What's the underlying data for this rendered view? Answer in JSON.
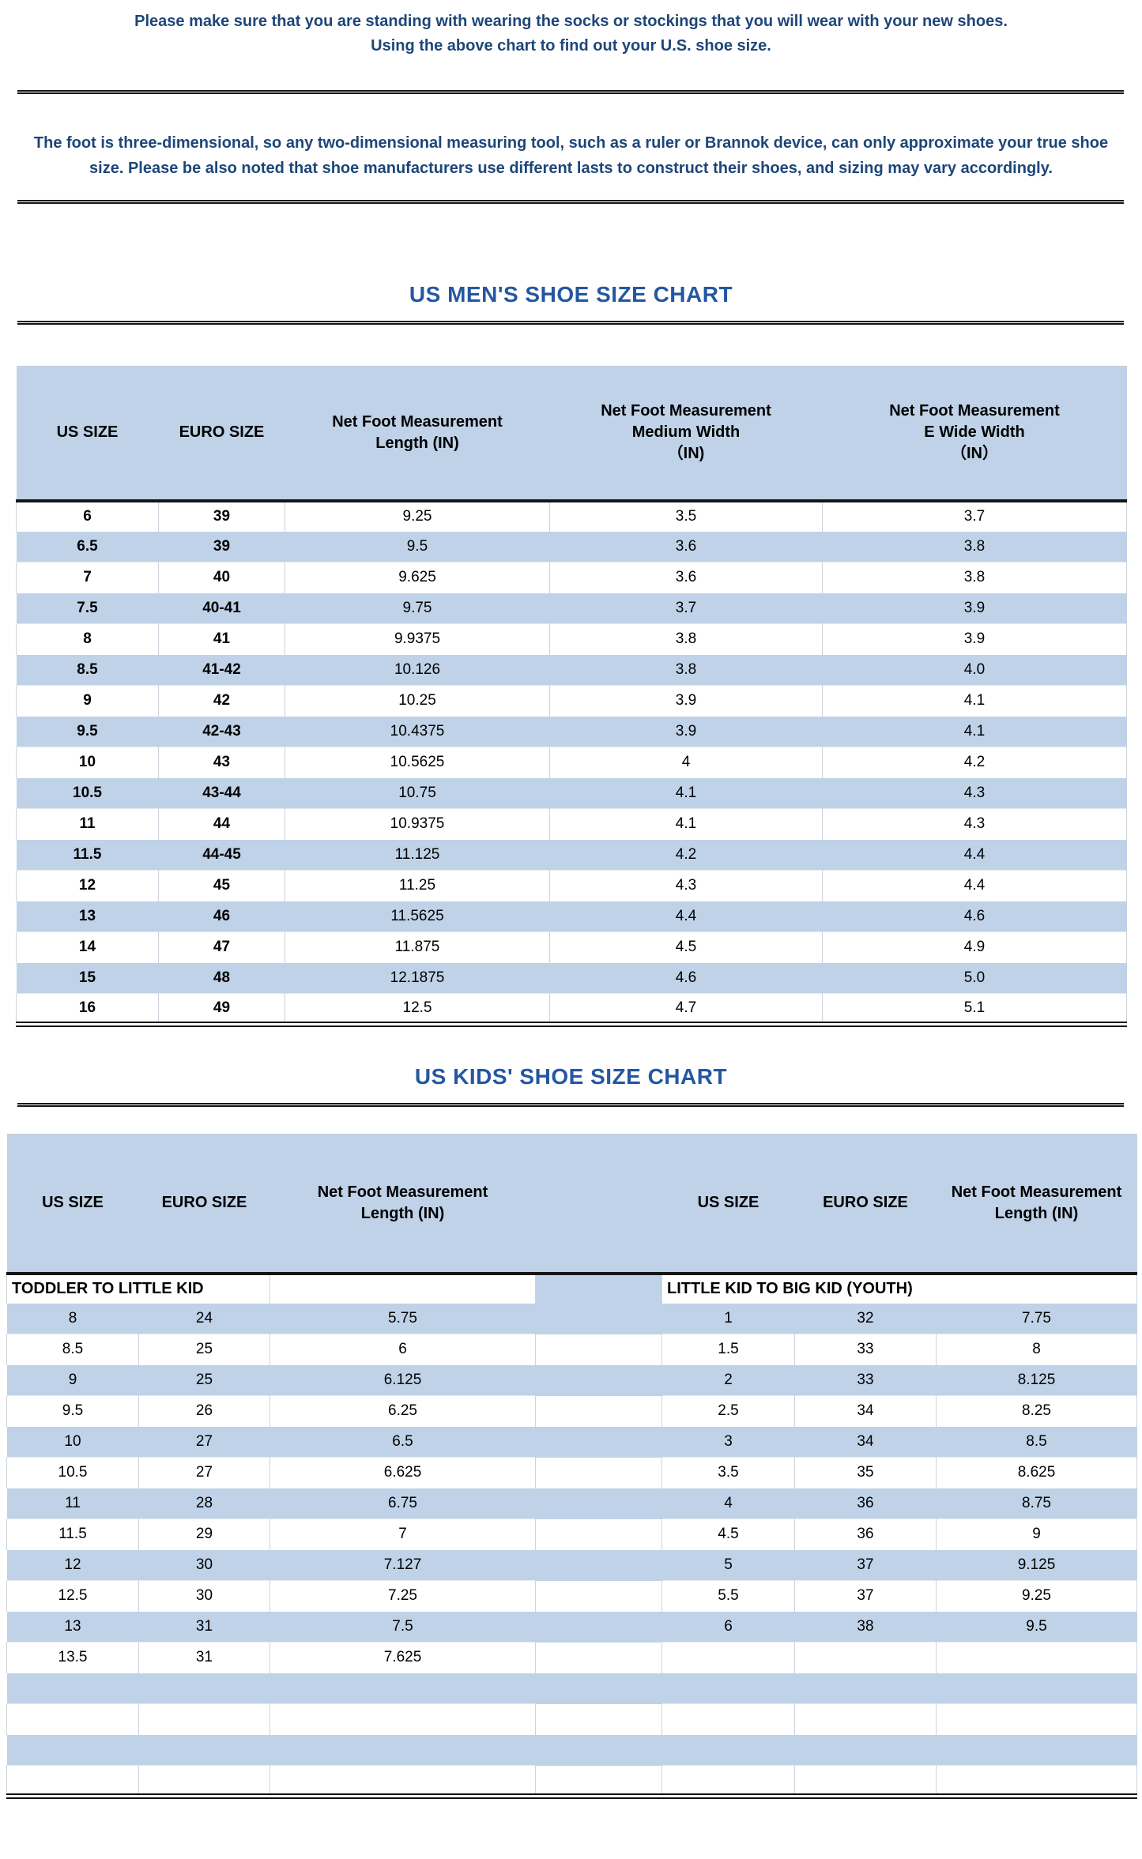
{
  "intro": {
    "line1": "Please make sure that you are standing with wearing the socks or stockings that you will wear with your new shoes.",
    "line2": "Using the above chart to find out your U.S. shoe size."
  },
  "note": "The foot is three-dimensional, so any two-dimensional measuring tool, such as a ruler or Brannok device, can only approximate your true shoe size. Please be also noted that shoe manufacturers use different lasts to construct their shoes, and sizing may vary accordingly.",
  "colors": {
    "table_blue": "#bfd2e8",
    "navy_text": "#1d4679",
    "title_blue": "#2457a2",
    "border_dark": "#141414",
    "cell_divider": "#ccd3dd"
  },
  "mens_chart": {
    "title": "US MEN'S SHOE SIZE CHART",
    "columns": [
      {
        "lines": [
          "US SIZE"
        ]
      },
      {
        "lines": [
          "EURO SIZE"
        ]
      },
      {
        "lines": [
          "Net Foot Measurement",
          "Length (IN)"
        ]
      },
      {
        "lines": [
          "Net Foot Measurement",
          "Medium Width",
          "（IN)"
        ]
      },
      {
        "lines": [
          "Net Foot Measurement",
          "E Wide Width",
          "（IN）"
        ]
      }
    ],
    "rows": [
      [
        "6",
        "39",
        "9.25",
        "3.5",
        "3.7"
      ],
      [
        "6.5",
        "39",
        "9.5",
        "3.6",
        "3.8"
      ],
      [
        "7",
        "40",
        "9.625",
        "3.6",
        "3.8"
      ],
      [
        "7.5",
        "40-41",
        "9.75",
        "3.7",
        "3.9"
      ],
      [
        "8",
        "41",
        "9.9375",
        "3.8",
        "3.9"
      ],
      [
        "8.5",
        "41-42",
        "10.126",
        "3.8",
        "4.0"
      ],
      [
        "9",
        "42",
        "10.25",
        "3.9",
        "4.1"
      ],
      [
        "9.5",
        "42-43",
        "10.4375",
        "3.9",
        "4.1"
      ],
      [
        "10",
        "43",
        "10.5625",
        "4",
        "4.2"
      ],
      [
        "10.5",
        "43-44",
        "10.75",
        "4.1",
        "4.3"
      ],
      [
        "11",
        "44",
        "10.9375",
        "4.1",
        "4.3"
      ],
      [
        "11.5",
        "44-45",
        "11.125",
        "4.2",
        "4.4"
      ],
      [
        "12",
        "45",
        "11.25",
        "4.3",
        "4.4"
      ],
      [
        "13",
        "46",
        "11.5625",
        "4.4",
        "4.6"
      ],
      [
        "14",
        "47",
        "11.875",
        "4.5",
        "4.9"
      ],
      [
        "15",
        "48",
        "12.1875",
        "4.6",
        "5.0"
      ],
      [
        "16",
        "49",
        "12.5",
        "4.7",
        "5.1"
      ]
    ]
  },
  "kids_chart": {
    "title": "US KIDS' SHOE SIZE CHART",
    "left_columns": [
      {
        "lines": [
          "US SIZE"
        ]
      },
      {
        "lines": [
          "EURO SIZE"
        ]
      },
      {
        "lines": [
          "Net Foot Measurement",
          "Length (IN)"
        ]
      }
    ],
    "right_columns": [
      {
        "lines": [
          "US SIZE"
        ]
      },
      {
        "lines": [
          "EURO SIZE"
        ]
      },
      {
        "lines": [
          "Net Foot Measurement",
          "Length (IN)"
        ]
      }
    ],
    "left_section": "TODDLER TO LITTLE KID",
    "right_section": "LITTLE KID TO BIG KID (YOUTH)",
    "left_rows": [
      [
        "8",
        "24",
        "5.75"
      ],
      [
        "8.5",
        "25",
        "6"
      ],
      [
        "9",
        "25",
        "6.125"
      ],
      [
        "9.5",
        "26",
        "6.25"
      ],
      [
        "10",
        "27",
        "6.5"
      ],
      [
        "10.5",
        "27",
        "6.625"
      ],
      [
        "11",
        "28",
        "6.75"
      ],
      [
        "11.5",
        "29",
        "7"
      ],
      [
        "12",
        "30",
        "7.127"
      ],
      [
        "12.5",
        "30",
        "7.25"
      ],
      [
        "13",
        "31",
        "7.5"
      ],
      [
        "13.5",
        "31",
        "7.625"
      ]
    ],
    "right_rows": [
      [
        "1",
        "32",
        "7.75"
      ],
      [
        "1.5",
        "33",
        "8"
      ],
      [
        "2",
        "33",
        "8.125"
      ],
      [
        "2.5",
        "34",
        "8.25"
      ],
      [
        "3",
        "34",
        "8.5"
      ],
      [
        "3.5",
        "35",
        "8.625"
      ],
      [
        "4",
        "36",
        "8.75"
      ],
      [
        "4.5",
        "36",
        "9"
      ],
      [
        "5",
        "37",
        "9.125"
      ],
      [
        "5.5",
        "37",
        "9.25"
      ],
      [
        "6",
        "38",
        "9.5"
      ],
      [
        "",
        "",
        ""
      ]
    ],
    "empty_rows": [
      "blue",
      "white",
      "blue",
      "white"
    ]
  },
  "chart_data": [
    {
      "type": "table",
      "title": "US MEN'S SHOE SIZE CHART",
      "columns": [
        "US SIZE",
        "EURO SIZE",
        "Net Foot Measurement Length (IN)",
        "Net Foot Measurement Medium Width （IN)",
        "Net Foot Measurement E Wide Width （IN）"
      ],
      "rows": [
        [
          "6",
          "39",
          "9.25",
          "3.5",
          "3.7"
        ],
        [
          "6.5",
          "39",
          "9.5",
          "3.6",
          "3.8"
        ],
        [
          "7",
          "40",
          "9.625",
          "3.6",
          "3.8"
        ],
        [
          "7.5",
          "40-41",
          "9.75",
          "3.7",
          "3.9"
        ],
        [
          "8",
          "41",
          "9.9375",
          "3.8",
          "3.9"
        ],
        [
          "8.5",
          "41-42",
          "10.126",
          "3.8",
          "4.0"
        ],
        [
          "9",
          "42",
          "10.25",
          "3.9",
          "4.1"
        ],
        [
          "9.5",
          "42-43",
          "10.4375",
          "3.9",
          "4.1"
        ],
        [
          "10",
          "43",
          "10.5625",
          "4",
          "4.2"
        ],
        [
          "10.5",
          "43-44",
          "10.75",
          "4.1",
          "4.3"
        ],
        [
          "11",
          "44",
          "10.9375",
          "4.1",
          "4.3"
        ],
        [
          "11.5",
          "44-45",
          "11.125",
          "4.2",
          "4.4"
        ],
        [
          "12",
          "45",
          "11.25",
          "4.3",
          "4.4"
        ],
        [
          "13",
          "46",
          "11.5625",
          "4.4",
          "4.6"
        ],
        [
          "14",
          "47",
          "11.875",
          "4.5",
          "4.9"
        ],
        [
          "15",
          "48",
          "12.1875",
          "4.6",
          "5.0"
        ],
        [
          "16",
          "49",
          "12.5",
          "4.7",
          "5.1"
        ]
      ]
    },
    {
      "type": "table",
      "title": "US KIDS' SHOE SIZE CHART",
      "sections": [
        {
          "name": "TODDLER TO LITTLE KID",
          "columns": [
            "US SIZE",
            "EURO SIZE",
            "Net Foot Measurement Length (IN)"
          ],
          "rows": [
            [
              "8",
              "24",
              "5.75"
            ],
            [
              "8.5",
              "25",
              "6"
            ],
            [
              "9",
              "25",
              "6.125"
            ],
            [
              "9.5",
              "26",
              "6.25"
            ],
            [
              "10",
              "27",
              "6.5"
            ],
            [
              "10.5",
              "27",
              "6.625"
            ],
            [
              "11",
              "28",
              "6.75"
            ],
            [
              "11.5",
              "29",
              "7"
            ],
            [
              "12",
              "30",
              "7.127"
            ],
            [
              "12.5",
              "30",
              "7.25"
            ],
            [
              "13",
              "31",
              "7.5"
            ],
            [
              "13.5",
              "31",
              "7.625"
            ]
          ]
        },
        {
          "name": "LITTLE KID TO BIG KID (YOUTH)",
          "columns": [
            "US SIZE",
            "EURO SIZE",
            "Net Foot Measurement Length (IN)"
          ],
          "rows": [
            [
              "1",
              "32",
              "7.75"
            ],
            [
              "1.5",
              "33",
              "8"
            ],
            [
              "2",
              "33",
              "8.125"
            ],
            [
              "2.5",
              "34",
              "8.25"
            ],
            [
              "3",
              "34",
              "8.5"
            ],
            [
              "3.5",
              "35",
              "8.625"
            ],
            [
              "4",
              "36",
              "8.75"
            ],
            [
              "4.5",
              "36",
              "9"
            ],
            [
              "5",
              "37",
              "9.125"
            ],
            [
              "5.5",
              "37",
              "9.25"
            ],
            [
              "6",
              "38",
              "9.5"
            ]
          ]
        }
      ]
    }
  ]
}
